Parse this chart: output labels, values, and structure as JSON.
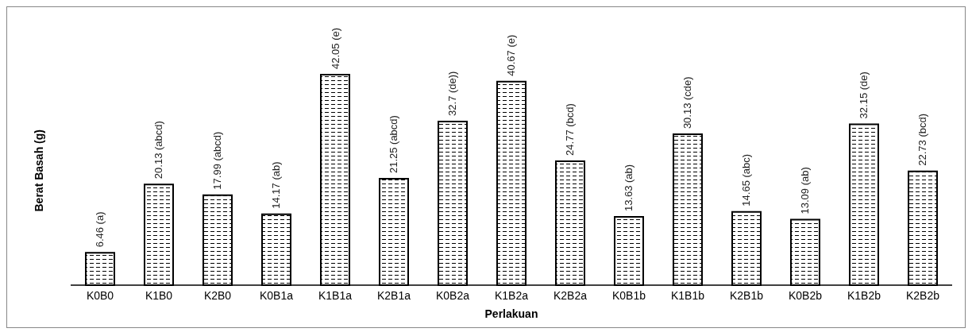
{
  "chart_data": {
    "type": "bar",
    "xlabel": "Perlakuan",
    "ylabel": "Berat Basah (g)",
    "categories": [
      "K0B0",
      "K1B0",
      "K2B0",
      "K0B1a",
      "K1B1a",
      "K2B1a",
      "K0B2a",
      "K1B2a",
      "K2B2a",
      "K0B1b",
      "K1B1b",
      "K2B1b",
      "K0B2b",
      "K1B2b",
      "K2B2b"
    ],
    "values": [
      6.46,
      20.13,
      17.99,
      14.17,
      42.05,
      21.25,
      32.7,
      40.67,
      24.77,
      13.63,
      30.13,
      14.65,
      13.09,
      32.15,
      22.73
    ],
    "value_labels": [
      "6.46 (a)",
      "20.13 (abcd)",
      "17.99 (abcd)",
      "14.17 (ab)",
      "42.05 (e)",
      "21.25 (abcd)",
      "32.7 (de))",
      "40.67 (e)",
      "24.77 (bcd)",
      "13.63 (ab)",
      "30.13 (cde)",
      "14.65 (abc)",
      "13.09 (ab)",
      "32.15 (de)",
      "22.73 (bcd)"
    ],
    "color": "#000000"
  }
}
